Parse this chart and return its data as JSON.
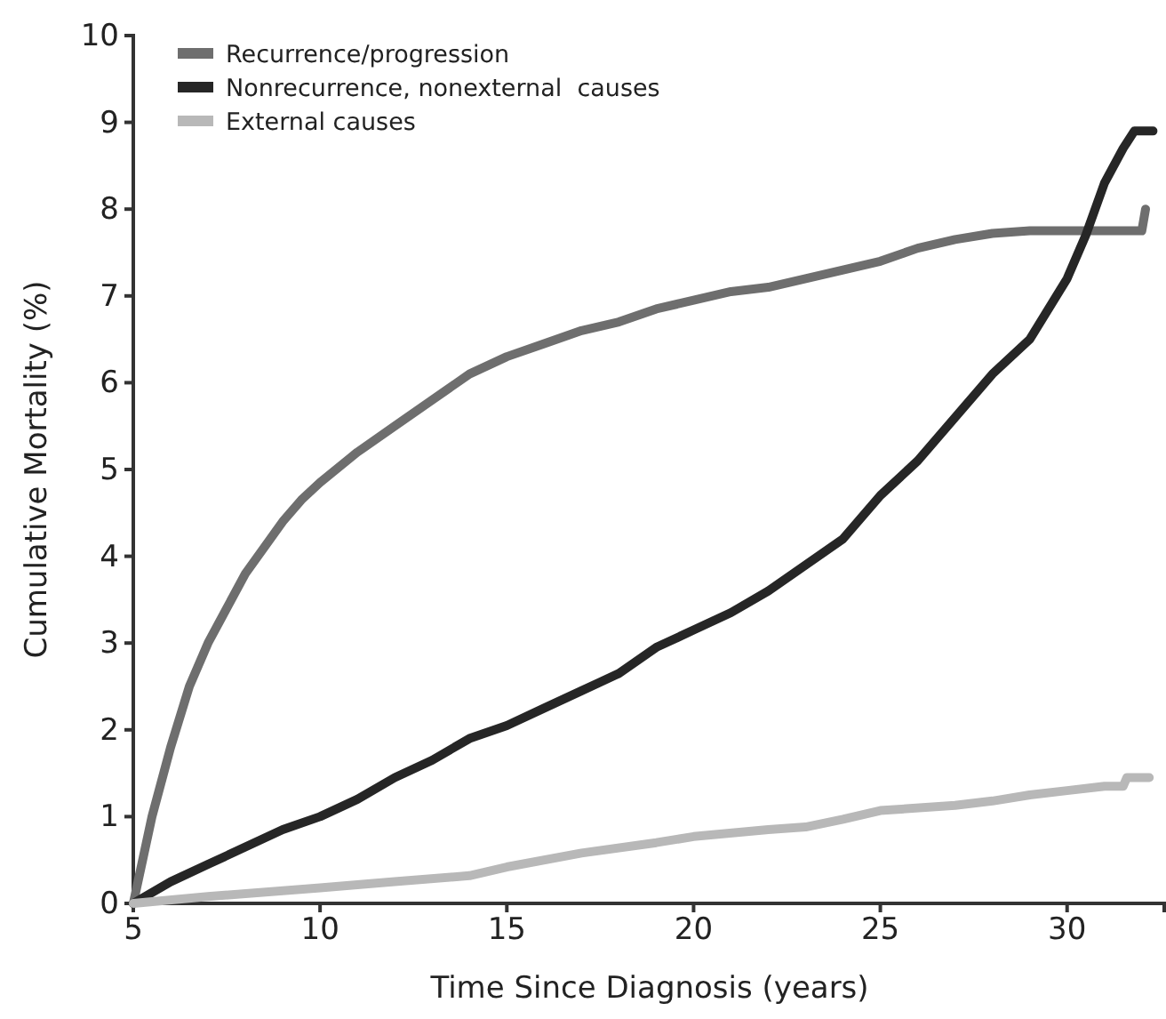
{
  "chart_data": {
    "type": "line",
    "xlabel": "Time Since Diagnosis (years)",
    "ylabel": "Cumulative Mortality (%)",
    "xlim": [
      5,
      32.6
    ],
    "xticks": [
      5,
      10,
      15,
      20,
      25,
      30
    ],
    "ylim": [
      0,
      10
    ],
    "yticks": [
      0,
      1,
      2,
      3,
      4,
      5,
      6,
      7,
      8,
      9,
      10
    ],
    "grid": false,
    "legend": "top left",
    "marker": "none",
    "line_style": "solid",
    "series": [
      {
        "name": "Recurrence/progression",
        "color": "#6e6e6e",
        "x": [
          5,
          5.5,
          6,
          6.5,
          7,
          7.5,
          8,
          8.5,
          9,
          9.5,
          10,
          11,
          12,
          13,
          14,
          15,
          16,
          17,
          18,
          19,
          20,
          21,
          22,
          23,
          24,
          25,
          26,
          27,
          28,
          29,
          30,
          31,
          32,
          32.1
        ],
        "values": [
          0,
          1,
          1.8,
          2.5,
          3,
          3.4,
          3.8,
          4.1,
          4.4,
          4.65,
          4.85,
          5.2,
          5.5,
          5.8,
          6.1,
          6.3,
          6.45,
          6.6,
          6.7,
          6.85,
          6.95,
          7.05,
          7.1,
          7.2,
          7.3,
          7.4,
          7.55,
          7.65,
          7.72,
          7.75,
          7.75,
          7.75,
          7.75,
          8.0
        ]
      },
      {
        "name": "Nonrecurrence, nonexternal  causes",
        "color": "#262626",
        "x": [
          5,
          6,
          7,
          8,
          9,
          10,
          11,
          12,
          13,
          14,
          15,
          16,
          17,
          18,
          19,
          20,
          21,
          22,
          23,
          24,
          25,
          26,
          27,
          28,
          29,
          30,
          30.5,
          31,
          31.5,
          31.8,
          32.3
        ],
        "values": [
          0,
          0.25,
          0.45,
          0.65,
          0.85,
          1.0,
          1.2,
          1.45,
          1.65,
          1.9,
          2.05,
          2.25,
          2.45,
          2.65,
          2.95,
          3.15,
          3.35,
          3.6,
          3.9,
          4.2,
          4.7,
          5.1,
          5.6,
          6.1,
          6.5,
          7.2,
          7.7,
          8.3,
          8.7,
          8.9,
          8.9
        ]
      },
      {
        "name": "External causes",
        "color": "#b8b8b8",
        "x": [
          5,
          7,
          10,
          12,
          14,
          15,
          17,
          19,
          20,
          22,
          23,
          24,
          25,
          27,
          28,
          29,
          30,
          31,
          31.5,
          31.6,
          32.2
        ],
        "values": [
          0,
          0.08,
          0.18,
          0.25,
          0.32,
          0.42,
          0.58,
          0.7,
          0.77,
          0.85,
          0.88,
          0.97,
          1.07,
          1.13,
          1.18,
          1.25,
          1.3,
          1.35,
          1.35,
          1.45,
          1.45
        ]
      }
    ]
  }
}
